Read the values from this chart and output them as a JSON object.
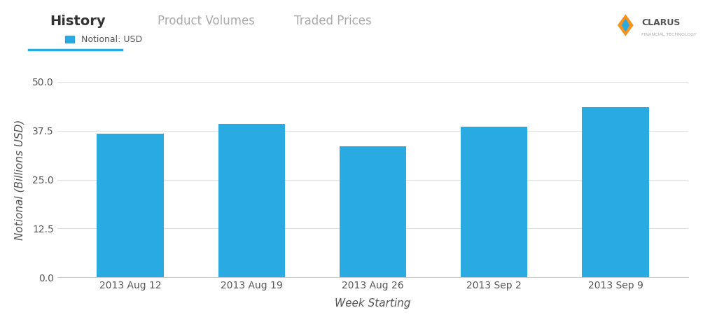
{
  "categories": [
    "2013 Aug 12",
    "2013 Aug 19",
    "2013 Aug 26",
    "2013 Sep 2",
    "2013 Sep 9"
  ],
  "values": [
    36.8,
    39.2,
    33.5,
    38.5,
    43.5
  ],
  "bar_color": "#29abe2",
  "background_color": "#ffffff",
  "ylabel": "Notional (Billions USD)",
  "xlabel": "Week Starting",
  "ylim": [
    0,
    50
  ],
  "yticks": [
    0.0,
    12.5,
    25.0,
    37.5,
    50.0
  ],
  "ytick_labels": [
    "0.0",
    "12.5",
    "25.0",
    "37.5",
    "50.0"
  ],
  "legend_label": "Notional: USD",
  "grid_color": "#e0e0e0",
  "nav_items": [
    "History",
    "Product Volumes",
    "Traded Prices"
  ],
  "nav_active": "History",
  "nav_active_color": "#333333",
  "nav_inactive_color": "#aaaaaa",
  "accent_line_color": "#29abe2",
  "title_font_size": 16,
  "axis_label_font_size": 11,
  "tick_font_size": 10
}
